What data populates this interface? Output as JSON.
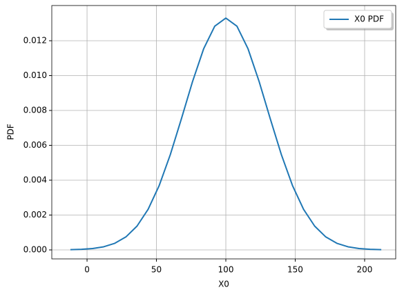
{
  "chart_data": {
    "type": "line",
    "xlabel": "X0",
    "ylabel": "PDF",
    "x": [
      -12,
      -4,
      4,
      12,
      20,
      28,
      36,
      44,
      52,
      60,
      68,
      76,
      84,
      92,
      100,
      108,
      116,
      124,
      132,
      140,
      148,
      156,
      164,
      172,
      180,
      188,
      196,
      204,
      212
    ],
    "series": [
      {
        "name": "X0 PDF",
        "color": "#1f77b4",
        "values": [
          1.25e-05,
          3.27e-05,
          7.95e-05,
          0.00018,
          0.00038,
          0.000746,
          0.001366,
          0.00233,
          0.003697,
          0.005467,
          0.007528,
          0.009656,
          0.011535,
          0.012834,
          0.013298,
          0.012834,
          0.011535,
          0.009656,
          0.007528,
          0.005467,
          0.003697,
          0.00233,
          0.001366,
          0.000746,
          0.00038,
          0.00018,
          7.95e-05,
          3.27e-05,
          1.25e-05
        ]
      }
    ],
    "xlim": [
      -25.4,
      222.4
    ],
    "xticks": [
      0,
      50,
      100,
      150,
      200
    ],
    "ylim": [
      -0.000515,
      0.01402
    ],
    "yticks": [
      {
        "value": 0,
        "label": "0.000"
      },
      {
        "value": 0.002,
        "label": "0.002"
      },
      {
        "value": 0.004,
        "label": "0.004"
      },
      {
        "value": 0.006,
        "label": "0.006"
      },
      {
        "value": 0.008,
        "label": "0.008"
      },
      {
        "value": 0.01,
        "label": "0.010"
      },
      {
        "value": 0.012,
        "label": "0.012"
      }
    ],
    "grid": true,
    "legend": "upper right"
  }
}
